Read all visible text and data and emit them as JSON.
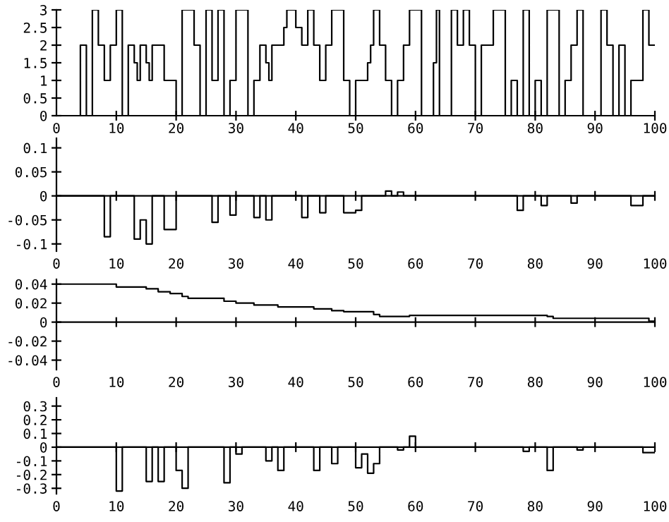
{
  "chart_data": [
    {
      "type": "step",
      "x": [
        0,
        4,
        5,
        6,
        7,
        8,
        9,
        10,
        11,
        12,
        13,
        13.5,
        14,
        15,
        15.5,
        16,
        18,
        20,
        21,
        23,
        24,
        25,
        26,
        27,
        28,
        29,
        30,
        32,
        33,
        34,
        35,
        35.5,
        36,
        38,
        38.5,
        40,
        41,
        42,
        43,
        44,
        45,
        46,
        48,
        49,
        50,
        52,
        52.5,
        53,
        54,
        55,
        56,
        57,
        58,
        59,
        61,
        63,
        63.5,
        64,
        66,
        67,
        68,
        69,
        70,
        71,
        73,
        75,
        76,
        77,
        78,
        79,
        80,
        81,
        82,
        84,
        85,
        86,
        87,
        88,
        91,
        92,
        93,
        94,
        95,
        96,
        98,
        99,
        100
      ],
      "values": [
        0,
        2,
        0,
        3,
        2,
        1,
        2,
        3,
        0,
        2,
        1.5,
        1,
        2,
        1.5,
        1,
        2,
        1,
        0,
        3,
        2,
        0,
        3,
        1,
        3,
        0,
        1,
        3,
        0,
        1,
        2,
        1.5,
        1,
        2,
        2.5,
        3,
        2.5,
        2,
        3,
        2,
        1,
        2,
        3,
        1,
        0,
        1,
        1.5,
        2,
        3,
        2,
        1,
        0,
        1,
        2,
        3,
        0,
        1.5,
        3,
        0,
        3,
        2,
        3,
        2,
        0,
        2,
        3,
        0,
        1,
        0,
        3,
        0,
        1,
        0,
        3,
        0,
        1,
        2,
        3,
        0,
        3,
        2,
        0,
        2,
        0,
        1,
        3,
        2,
        2
      ],
      "color": "#000000",
      "xlim": [
        0,
        100
      ],
      "ylim": [
        0,
        3
      ],
      "xticks": [
        0,
        10,
        20,
        30,
        40,
        50,
        60,
        70,
        80,
        90,
        100
      ],
      "yticks": [
        0,
        0.5,
        1,
        1.5,
        2,
        2.5,
        3
      ]
    },
    {
      "type": "step",
      "x": [
        0,
        8,
        9,
        13,
        14,
        15,
        16,
        18,
        20,
        26,
        27,
        29,
        30,
        33,
        34,
        35,
        36,
        41,
        42,
        44,
        45,
        48,
        50,
        51,
        55,
        56,
        57,
        58,
        77,
        78,
        81,
        82,
        86,
        87,
        96,
        98,
        100
      ],
      "values": [
        0,
        -0.085,
        0,
        -0.09,
        -0.05,
        -0.1,
        0,
        -0.07,
        0,
        -0.055,
        0,
        -0.04,
        0,
        -0.045,
        0,
        -0.05,
        0,
        -0.045,
        0,
        -0.035,
        0,
        -0.035,
        -0.03,
        0,
        0.01,
        0,
        0.008,
        0,
        -0.03,
        0,
        -0.02,
        0,
        -0.015,
        0,
        -0.02,
        0,
        0
      ],
      "color": "#000000",
      "xlim": [
        0,
        100
      ],
      "ylim": [
        -0.115,
        0.12
      ],
      "xticks": [
        0,
        10,
        20,
        30,
        40,
        50,
        60,
        70,
        80,
        90,
        100
      ],
      "yticks": [
        -0.1,
        -0.05,
        0,
        0.05,
        0.1
      ]
    },
    {
      "type": "step",
      "x": [
        0,
        10,
        15,
        17,
        19,
        21,
        22,
        28,
        30,
        33,
        37,
        43,
        46,
        48,
        53,
        54,
        59,
        82,
        83,
        99,
        100
      ],
      "values": [
        0.04,
        0.037,
        0.035,
        0.032,
        0.03,
        0.027,
        0.025,
        0.022,
        0.02,
        0.018,
        0.016,
        0.014,
        0.012,
        0.011,
        0.008,
        0.006,
        0.007,
        0.006,
        0.004,
        0.001,
        0.001
      ],
      "color": "#000000",
      "xlim": [
        0,
        100
      ],
      "ylim": [
        -0.05,
        0.045
      ],
      "xticks": [
        0,
        10,
        20,
        30,
        40,
        50,
        60,
        70,
        80,
        90,
        100
      ],
      "yticks": [
        -0.04,
        -0.02,
        0,
        0.02,
        0.04
      ]
    },
    {
      "type": "step",
      "x": [
        0,
        10,
        11,
        15,
        16,
        17,
        18,
        20,
        21,
        22,
        28,
        29,
        30,
        31,
        35,
        36,
        37,
        38,
        43,
        44,
        46,
        47,
        50,
        51,
        52,
        53,
        54,
        57,
        58,
        59,
        60,
        78,
        79,
        82,
        83,
        87,
        88,
        98,
        100
      ],
      "values": [
        0,
        -0.32,
        0,
        -0.25,
        0,
        -0.25,
        0,
        -0.17,
        -0.3,
        0,
        -0.26,
        0,
        -0.05,
        0,
        -0.1,
        0,
        -0.17,
        0,
        -0.17,
        0,
        -0.12,
        0,
        -0.15,
        -0.05,
        -0.19,
        -0.12,
        0,
        -0.02,
        0,
        0.08,
        0,
        -0.03,
        0,
        -0.17,
        0,
        -0.02,
        0,
        -0.04,
        -0.04
      ],
      "color": "#000000",
      "xlim": [
        0,
        100
      ],
      "ylim": [
        -0.34,
        0.36
      ],
      "xticks": [
        0,
        10,
        20,
        30,
        40,
        50,
        60,
        70,
        80,
        90,
        100
      ],
      "yticks": [
        -0.3,
        -0.2,
        -0.1,
        0,
        0.1,
        0.2,
        0.3
      ]
    }
  ]
}
